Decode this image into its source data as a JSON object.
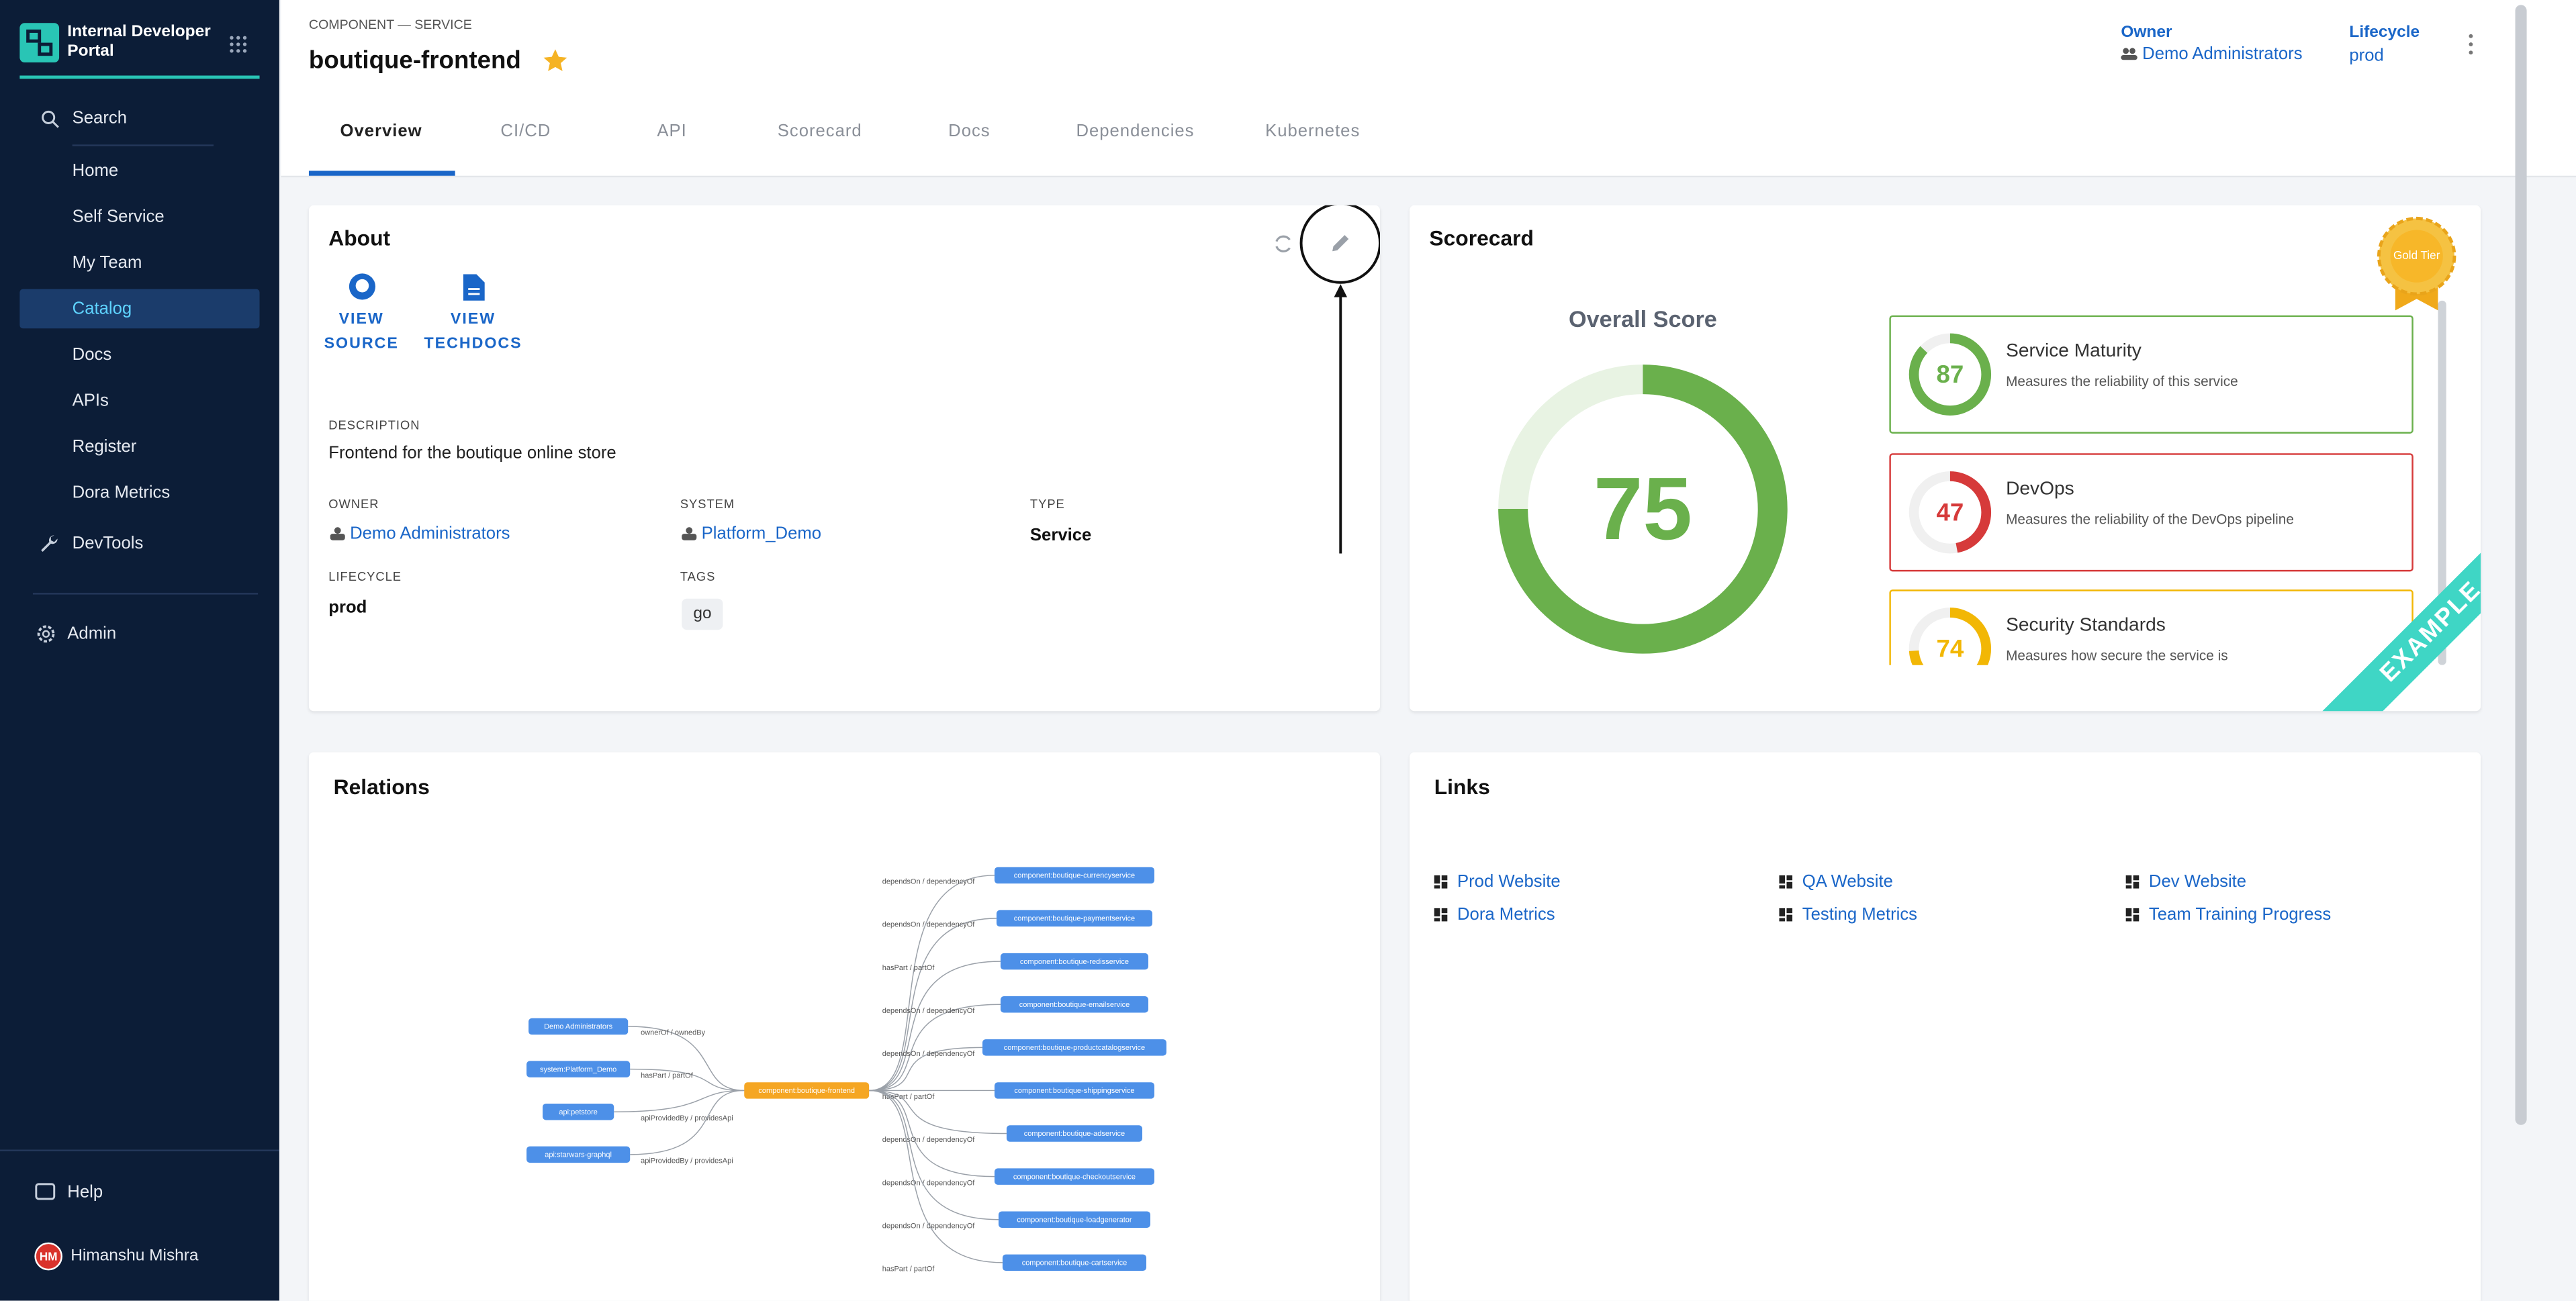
{
  "sidebar": {
    "brand": "Internal Developer Portal",
    "search": "Search",
    "items": [
      "Home",
      "Self Service",
      "My Team",
      "Catalog",
      "Docs",
      "APIs",
      "Register",
      "Dora Metrics"
    ],
    "active": "Catalog",
    "devtools": "DevTools",
    "admin": "Admin",
    "help": "Help",
    "user": {
      "initials": "HM",
      "name": "Himanshu Mishra"
    }
  },
  "header": {
    "kind": "COMPONENT — SERVICE",
    "title": "boutique-frontend",
    "owner_label": "Owner",
    "owner": "Demo Administrators",
    "lifecycle_label": "Lifecycle",
    "lifecycle": "prod"
  },
  "tabs": [
    "Overview",
    "CI/CD",
    "API",
    "Scorecard",
    "Docs",
    "Dependencies",
    "Kubernetes"
  ],
  "about": {
    "title": "About",
    "links": [
      "VIEW SOURCE",
      "VIEW TECHDOCS"
    ],
    "description_label": "DESCRIPTION",
    "description": "Frontend for the boutique online store",
    "fields": [
      {
        "label": "OWNER",
        "value": "Demo Administrators"
      },
      {
        "label": "SYSTEM",
        "value": "Platform_Demo"
      },
      {
        "label": "TYPE",
        "value": "Service"
      },
      {
        "label": "LIFECYCLE",
        "value": "prod"
      },
      {
        "label": "TAGS",
        "value": "go"
      }
    ]
  },
  "scorecard": {
    "title": "Scorecard",
    "overall_label": "Overall Score",
    "overall": 75,
    "scale": [
      0,
      100
    ],
    "badge": "Gold Tier",
    "ribbon": "EXAMPLE",
    "checks": [
      {
        "name": "Service Maturity",
        "description": "Measures the reliability of this service",
        "score": 87,
        "color": "#6ab04c"
      },
      {
        "name": "DevOps",
        "description": "Measures the reliability of the DevOps pipeline",
        "score": 47,
        "color": "#d63a3a"
      },
      {
        "name": "Security Standards",
        "description": "Measures how secure the service is",
        "score": 74,
        "color": "#f2b705"
      }
    ]
  },
  "relations": {
    "title": "Relations",
    "center": "component:boutique-frontend",
    "left": [
      {
        "node": "Demo Administrators",
        "edge": "ownerOf / ownedBy"
      },
      {
        "node": "system:Platform_Demo",
        "edge": "hasPart / partOf"
      },
      {
        "node": "api:petstore",
        "edge": "apiProvidedBy / providesApi"
      },
      {
        "node": "api:starwars-graphql",
        "edge": "apiProvidedBy / providesApi"
      }
    ],
    "right": [
      {
        "node": "component:boutique-currencyservice",
        "edge": "dependsOn / dependencyOf"
      },
      {
        "node": "component:boutique-paymentservice",
        "edge": "dependsOn / dependencyOf"
      },
      {
        "node": "component:boutique-redisservice",
        "edge": "hasPart / partOf"
      },
      {
        "node": "component:boutique-emailservice",
        "edge": "dependsOn / dependencyOf"
      },
      {
        "node": "component:boutique-productcatalogservice",
        "edge": "dependsOn / dependencyOf"
      },
      {
        "node": "component:boutique-shippingservice",
        "edge": "hasPart / partOf"
      },
      {
        "node": "component:boutique-adservice",
        "edge": "dependsOn / dependencyOf"
      },
      {
        "node": "component:boutique-checkoutservice",
        "edge": "dependsOn / dependencyOf"
      },
      {
        "node": "component:boutique-loadgenerator",
        "edge": "dependsOn / dependencyOf"
      },
      {
        "node": "component:boutique-cartservice",
        "edge": "hasPart / partOf"
      }
    ]
  },
  "links": {
    "title": "Links",
    "items": [
      "Prod Website",
      "QA Website",
      "Dev Website",
      "Dora Metrics",
      "Testing Metrics",
      "Team Training Progress"
    ]
  }
}
